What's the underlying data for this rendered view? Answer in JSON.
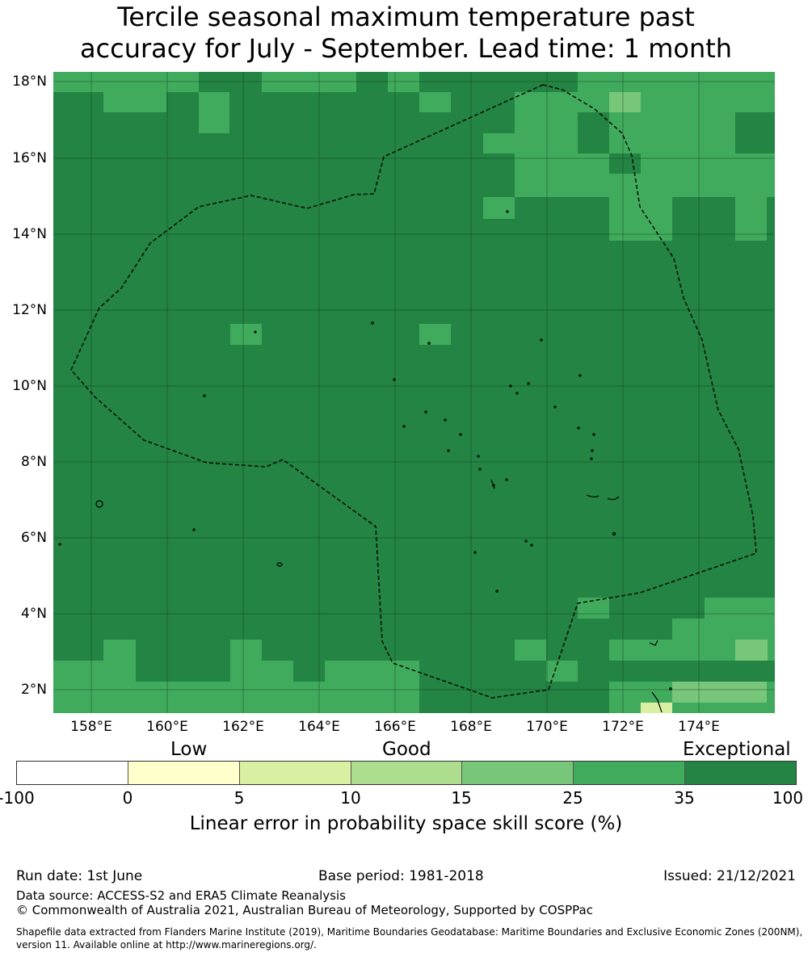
{
  "title_line1": "Tercile seasonal maximum temperature past",
  "title_line2": "accuracy for July - September. Lead time: 1 month",
  "map": {
    "lon_range": [
      157,
      176
    ],
    "lat_range": [
      1.4,
      18.3
    ],
    "cell_size_deg": 0.833,
    "lat_ticks": [
      "18°N",
      "16°N",
      "14°N",
      "12°N",
      "10°N",
      "8°N",
      "6°N",
      "4°N",
      "2°N"
    ],
    "lon_ticks": [
      "158°E",
      "160°E",
      "162°E",
      "164°E",
      "166°E",
      "168°E",
      "170°E",
      "172°E",
      "174°E"
    ],
    "skill_cells_pct_bins": {
      "25-35": "scattered blocks mainly along north and south edges",
      "15-25": "few isolated cells",
      "0-5": "one cell near 173°E 1.5°N",
      "35-100": "dominant category across the map"
    }
  },
  "colorbar": {
    "categories": [
      "Low",
      "Good",
      "Exceptional"
    ],
    "ticks": [
      "-100",
      "0",
      "5",
      "10",
      "15",
      "25",
      "35",
      "100"
    ],
    "colors": [
      "#ffffff",
      "#ffffcc",
      "#d9f0a3",
      "#addd8e",
      "#78c679",
      "#41ab5d",
      "#238443"
    ],
    "label": "Linear error in probability space skill score (%)"
  },
  "footer": {
    "run_date": "Run date: 1st June",
    "base_period": "Base period: 1981-2018",
    "issued": "Issued: 21/12/2021",
    "data_source": "Data source: ACCESS-S2 and ERA5 Climate Reanalysis",
    "copyright": "© Commonwealth of Australia 2021, Australian Bureau of Meteorology, Supported by COSPPac",
    "shapefile_line1": "Shapefile data extracted from Flanders Marine Institute (2019), Maritime Boundaries Geodatabase: Maritime Boundaries and Exclusive Economic Zones (200NM),",
    "shapefile_line2": "version 11. Available online at http://www.marineregions.org/."
  }
}
